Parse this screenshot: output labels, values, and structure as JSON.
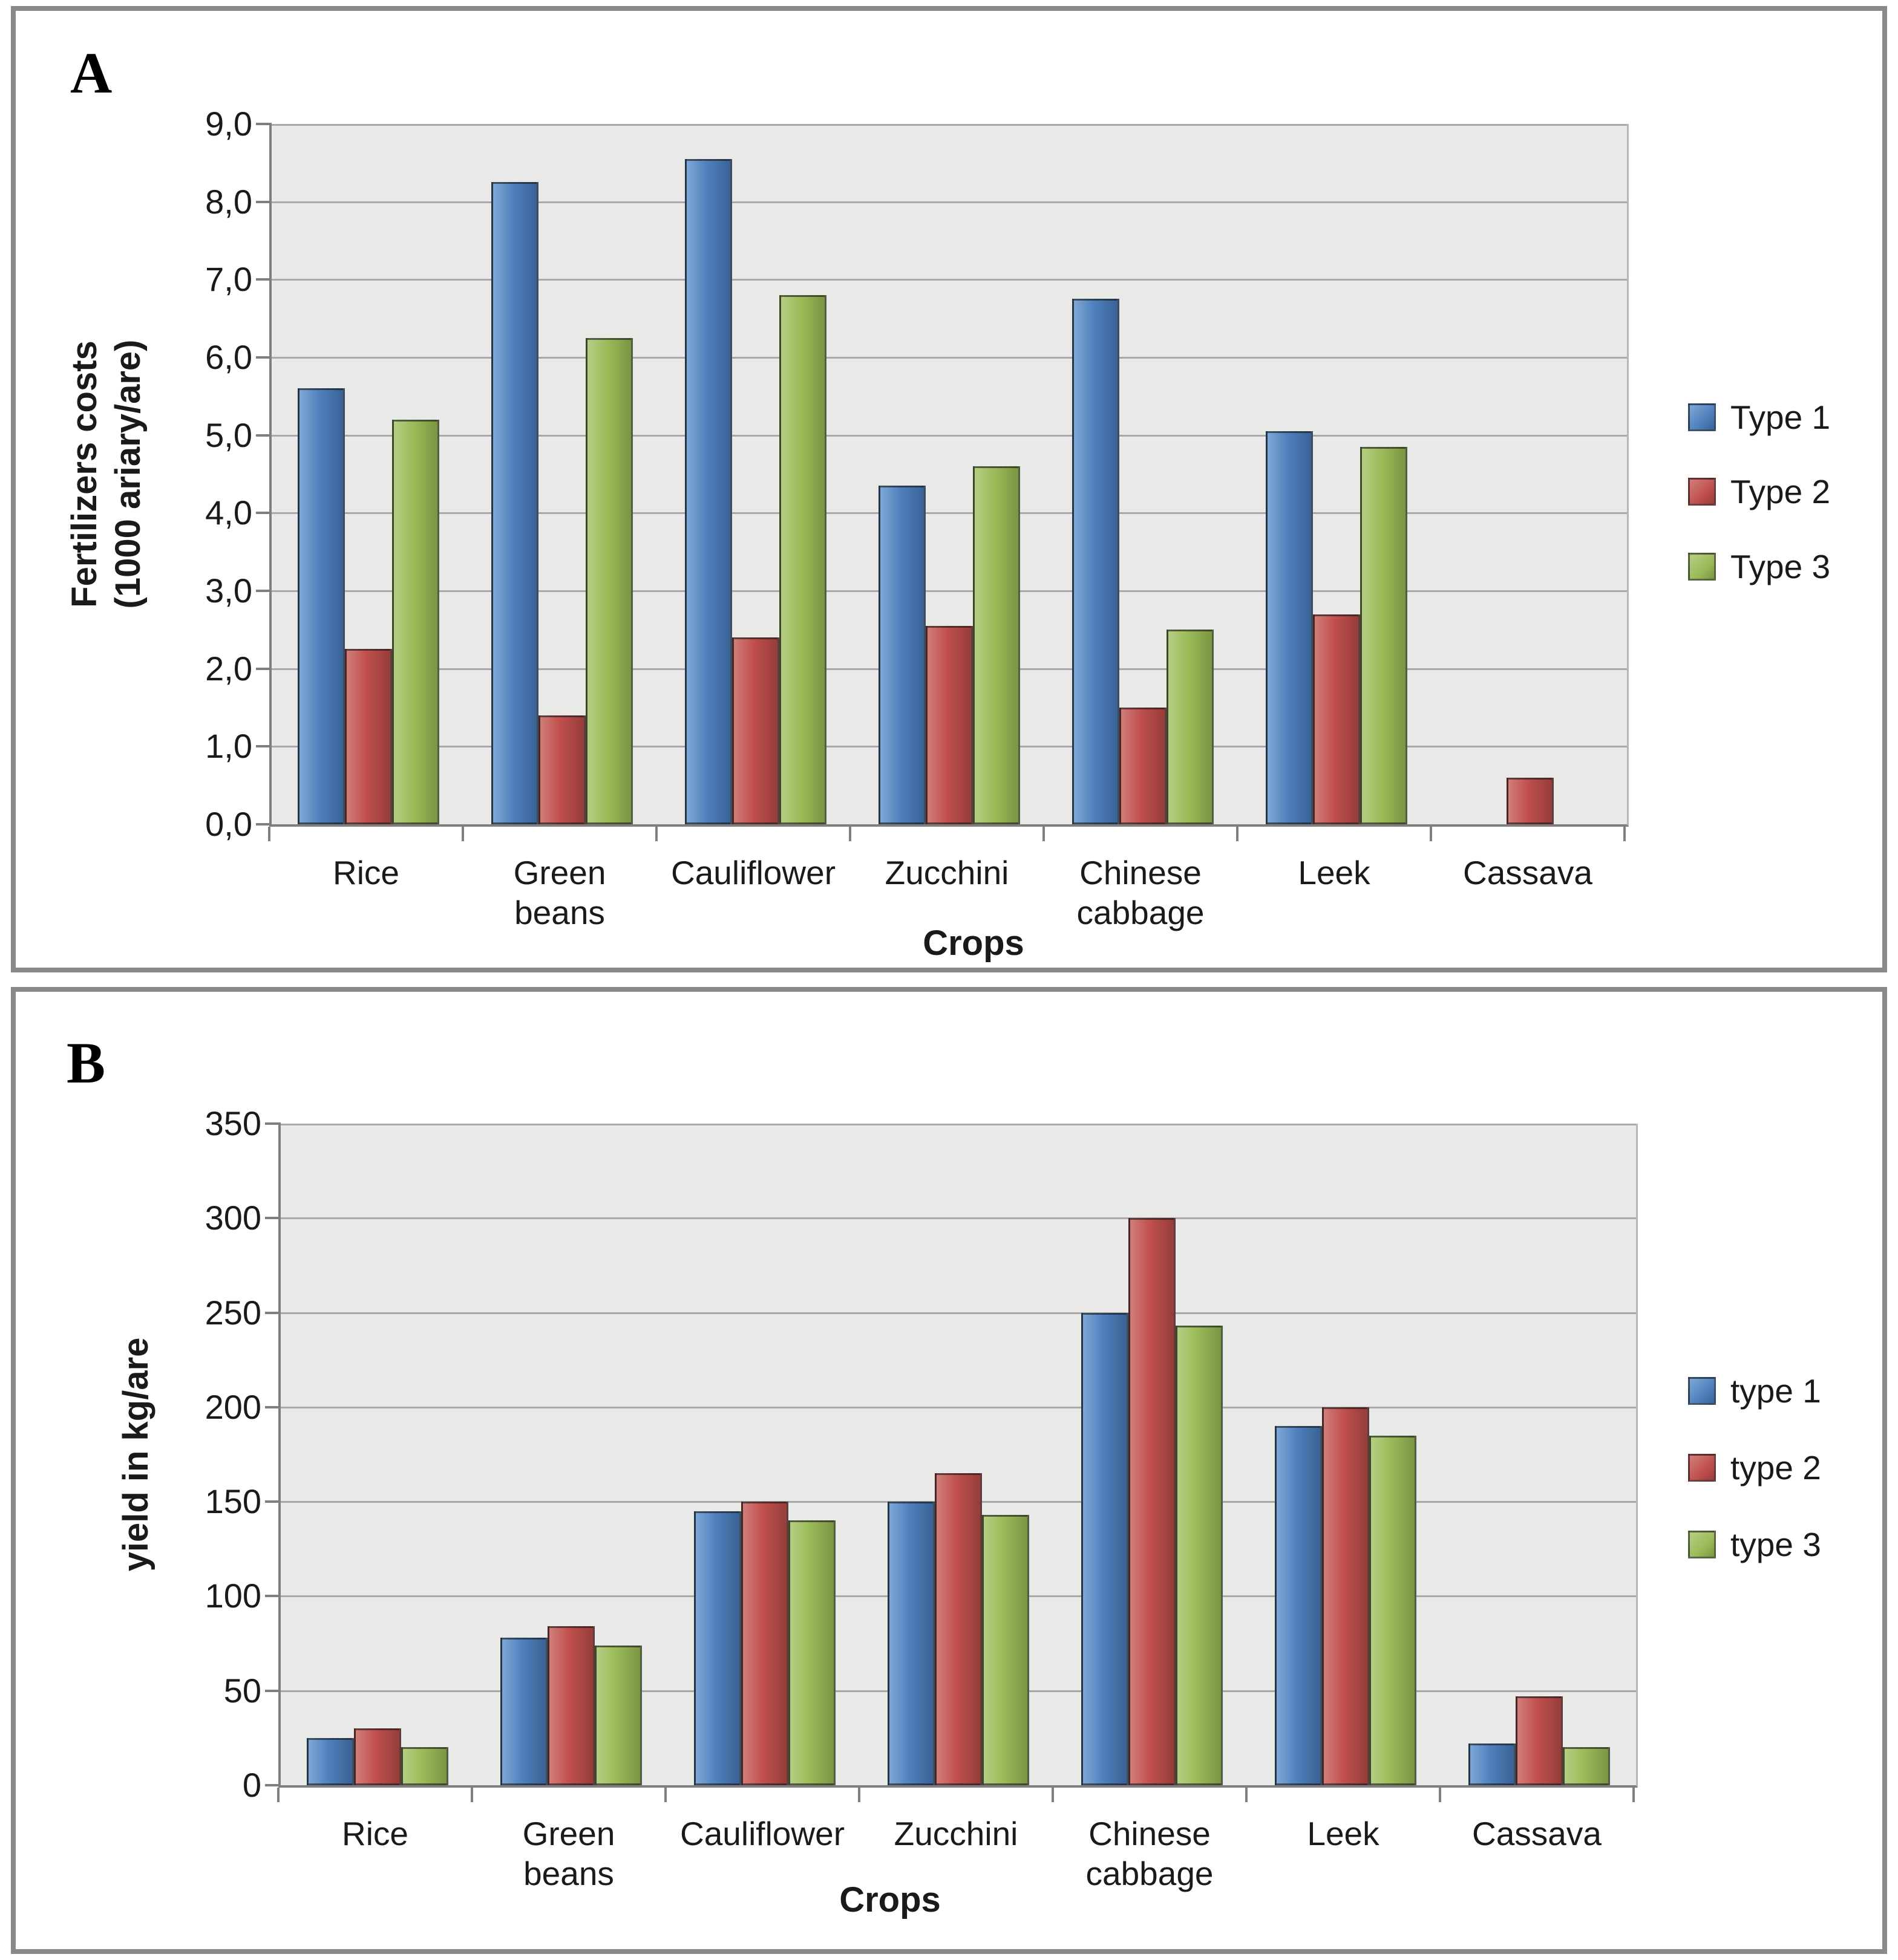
{
  "figure": {
    "panels": [
      {
        "letter": "A",
        "ylabel_lines": [
          "Fertilizers costs",
          "(1000 ariary/are)"
        ],
        "xlabel": "Crops",
        "yticks": [
          "9,0",
          "8,0",
          "7,0",
          "6,0",
          "5,0",
          "4,0",
          "3,0",
          "2,0",
          "1,0",
          "0,0"
        ],
        "categories": [
          [
            "Rice"
          ],
          [
            "Green",
            "beans"
          ],
          [
            "Cauliflower"
          ],
          [
            "Zucchini"
          ],
          [
            "Chinese",
            "cabbage"
          ],
          [
            "Leek"
          ],
          [
            "Cassava"
          ]
        ],
        "legend": [
          "Type 1",
          "Type 2",
          "Type 3"
        ]
      },
      {
        "letter": "B",
        "ylabel_lines": [
          "yield in  kg/are"
        ],
        "xlabel": "Crops",
        "yticks": [
          "350",
          "300",
          "250",
          "200",
          "150",
          "100",
          "50",
          "0"
        ],
        "categories": [
          [
            "Rice"
          ],
          [
            "Green",
            "beans"
          ],
          [
            "Cauliflower"
          ],
          [
            "Zucchini"
          ],
          [
            "Chinese",
            "cabbage"
          ],
          [
            "Leek"
          ],
          [
            "Cassava"
          ]
        ],
        "legend": [
          "type 1",
          "type 2",
          "type 3"
        ]
      }
    ],
    "colors": {
      "plot_background": "#e9e9e7",
      "gridline": "#a9a9a9",
      "axis_line": "#7f7f7f",
      "frame_border": "#8a8a8a"
    }
  },
  "chart_data": [
    {
      "type": "bar",
      "panel": "A",
      "title": "",
      "categories": [
        "Rice",
        "Green beans",
        "Cauliflower",
        "Zucchini",
        "Chinese cabbage",
        "Leek",
        "Cassava"
      ],
      "series": [
        {
          "name": "Type 1",
          "color": "#4F81BD",
          "light": "#7FA8D6",
          "dark": "#3A6395",
          "values": [
            5.6,
            8.25,
            8.55,
            4.35,
            6.75,
            5.05,
            null
          ]
        },
        {
          "name": "Type 2",
          "color": "#C0504D",
          "light": "#D07E7C",
          "dark": "#963D3B",
          "values": [
            2.25,
            1.4,
            2.4,
            2.55,
            1.5,
            2.7,
            0.6
          ]
        },
        {
          "name": "Type 3",
          "color": "#9BBB59",
          "light": "#B5CE85",
          "dark": "#7A9542",
          "values": [
            5.2,
            6.25,
            6.8,
            4.6,
            2.5,
            4.85,
            null
          ]
        }
      ],
      "xlabel": "Crops",
      "ylabel": "Fertilizers costs (1000 ariary/are)",
      "ylim": [
        0,
        9
      ],
      "ytick_step": 1,
      "ytick_format": "comma-decimal",
      "grid": true,
      "legend_position": "right"
    },
    {
      "type": "bar",
      "panel": "B",
      "title": "",
      "categories": [
        "Rice",
        "Green beans",
        "Cauliflower",
        "Zucchini",
        "Chinese cabbage",
        "Leek",
        "Cassava"
      ],
      "series": [
        {
          "name": "type 1",
          "color": "#4F81BD",
          "light": "#7FA8D6",
          "dark": "#3A6395",
          "values": [
            25,
            78,
            145,
            150,
            250,
            190,
            22
          ]
        },
        {
          "name": "type 2",
          "color": "#C0504D",
          "light": "#D07E7C",
          "dark": "#963D3B",
          "values": [
            30,
            84,
            150,
            165,
            300,
            200,
            47
          ]
        },
        {
          "name": "type 3",
          "color": "#9BBB59",
          "light": "#B5CE85",
          "dark": "#7A9542",
          "values": [
            20,
            74,
            140,
            143,
            243,
            185,
            20
          ]
        }
      ],
      "xlabel": "Crops",
      "ylabel": "yield in  kg/are",
      "ylim": [
        0,
        350
      ],
      "ytick_step": 50,
      "ytick_format": "integer",
      "grid": true,
      "legend_position": "right"
    }
  ]
}
